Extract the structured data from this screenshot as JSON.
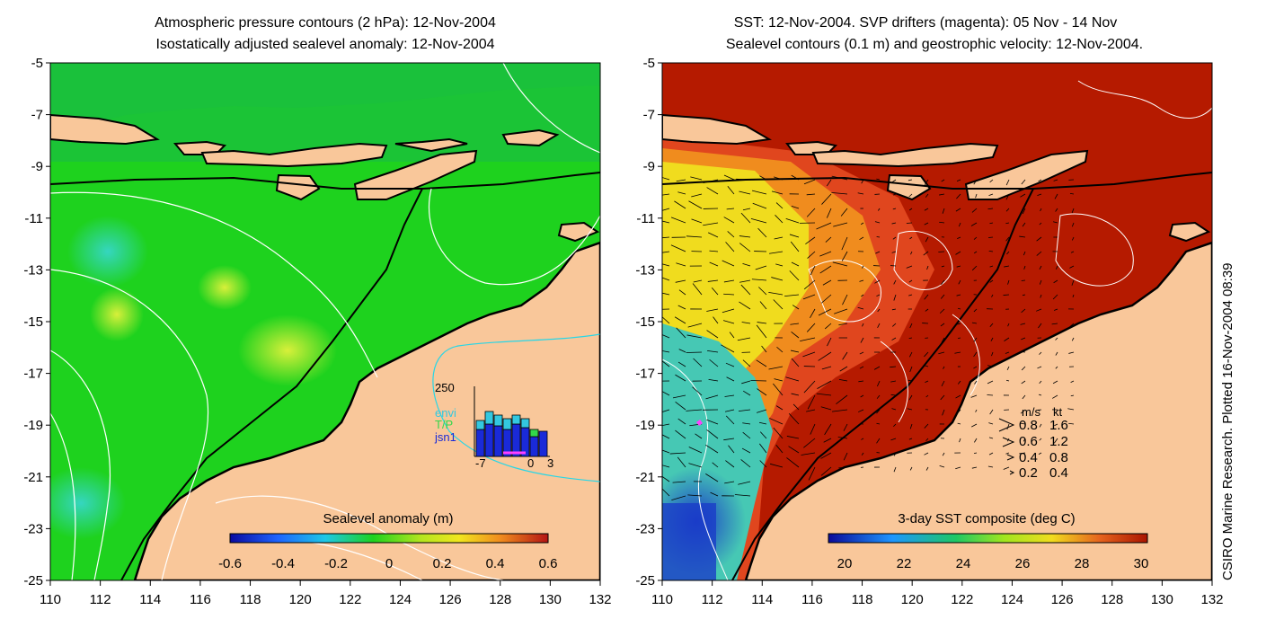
{
  "left_panel": {
    "title_line1": "Atmospheric pressure contours (2 hPa): 12-Nov-2004",
    "title_line2": "Isostatically adjusted sealevel anomaly: 12-Nov-2004",
    "colorbar": {
      "label": "Sealevel anomaly (m)",
      "ticks": [
        "-0.6",
        "-0.4",
        "-0.2",
        "0",
        "0.2",
        "0.4",
        "0.6"
      ]
    },
    "inset": {
      "ymax_label": "250",
      "legend": [
        "envi",
        "T/P",
        "jsn1"
      ],
      "x_ticks": [
        "-7",
        "0",
        "3"
      ],
      "colors": {
        "envi": "#33c8e0",
        "tp": "#33d84a",
        "jsn1": "#1a2ad8"
      }
    }
  },
  "right_panel": {
    "title_line1": "SST: 12-Nov-2004. SVP drifters (magenta): 05 Nov - 14 Nov",
    "title_line2": "Sealevel contours (0.1 m) and geostrophic velocity: 12-Nov-2004.",
    "colorbar": {
      "label": "3-day SST composite (deg C)",
      "ticks": [
        "20",
        "22",
        "24",
        "26",
        "28",
        "30"
      ]
    },
    "velocity_key": {
      "header_ms": "m/s",
      "header_kt": "kt",
      "rows": [
        {
          "ms": "0.8",
          "kt": "1.6"
        },
        {
          "ms": "0.6",
          "kt": "1.2"
        },
        {
          "ms": "0.4",
          "kt": "0.8"
        },
        {
          "ms": "0.2",
          "kt": "0.4"
        }
      ]
    }
  },
  "axes": {
    "x_ticks": [
      "110",
      "112",
      "114",
      "116",
      "118",
      "120",
      "122",
      "124",
      "126",
      "128",
      "130",
      "132"
    ],
    "y_ticks": [
      "-5",
      "-7",
      "-9",
      "-11",
      "-13",
      "-15",
      "-17",
      "-19",
      "-21",
      "-23",
      "-25"
    ]
  },
  "credit": "CSIRO Marine Research. Plotted 16-Nov-2004 08:39",
  "colors": {
    "land": "#f9c79a",
    "sealevel_main": "#1ed21e",
    "sst_warm": "#b51a00"
  }
}
